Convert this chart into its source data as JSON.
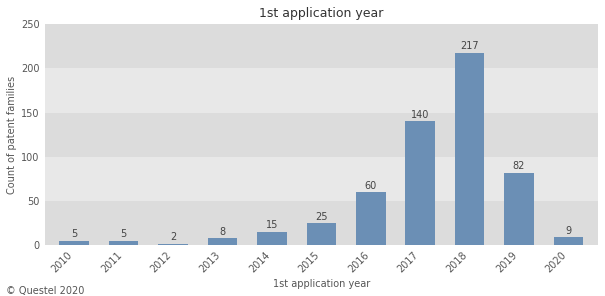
{
  "years": [
    2010,
    2011,
    2012,
    2013,
    2014,
    2015,
    2016,
    2017,
    2018,
    2019,
    2020
  ],
  "values": [
    5,
    5,
    2,
    8,
    15,
    25,
    60,
    140,
    217,
    82,
    9
  ],
  "bar_color": "#6b8fb5",
  "title": "1st application year",
  "xlabel": "1st application year",
  "ylabel": "Count of patent families",
  "ylim": [
    0,
    250
  ],
  "yticks": [
    0,
    50,
    100,
    150,
    200,
    250
  ],
  "band_colors": [
    "#dcdcdc",
    "#e8e8e8"
  ],
  "figure_bg": "#ffffff",
  "plot_bg": "#e8e8e8",
  "footer_text": "© Questel 2020",
  "title_fontsize": 9,
  "label_fontsize": 7,
  "tick_fontsize": 7,
  "footer_fontsize": 7,
  "bar_label_fontsize": 7
}
